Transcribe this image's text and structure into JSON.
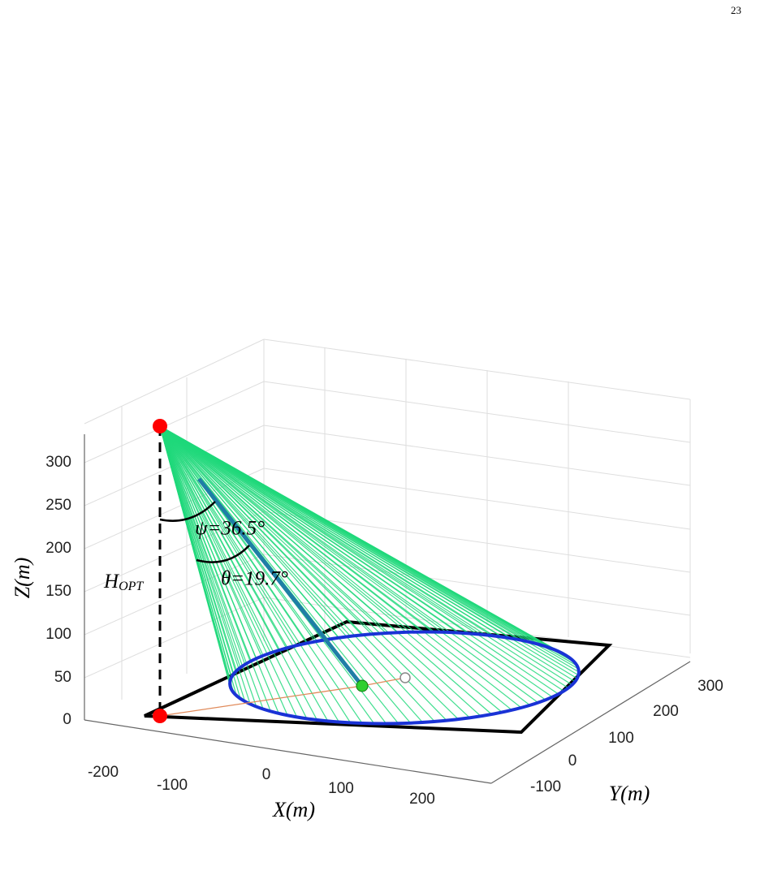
{
  "page_number": "23",
  "figure": {
    "z_axis": {
      "label": "Z(m)",
      "ticks": [
        0,
        50,
        100,
        150,
        200,
        250,
        300
      ]
    },
    "x_axis": {
      "label": "X(m)",
      "ticks": [
        -200,
        -100,
        0,
        100,
        200
      ]
    },
    "y_axis": {
      "label": "Y(m)",
      "ticks": [
        -100,
        0,
        100,
        200,
        300
      ]
    },
    "annotations": {
      "psi": "ψ=36.5°",
      "theta": "θ=19.7°",
      "height": "H",
      "height_sub": "OPT"
    }
  }
}
